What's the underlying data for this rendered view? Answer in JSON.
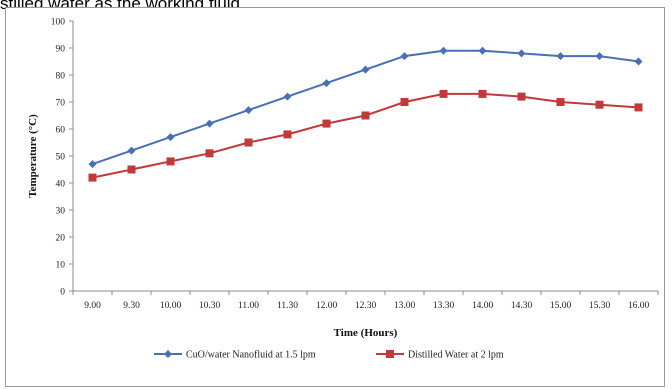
{
  "caption_fragment": "stilled water as the working fluid.",
  "chart_data": {
    "type": "line",
    "xlabel": "Time (Hours)",
    "ylabel": "Temperature (°C)",
    "categories": [
      "9.00",
      "9.30",
      "10.00",
      "10.30",
      "11.00",
      "11.30",
      "12.00",
      "12.30",
      "13.00",
      "13.30",
      "14.00",
      "14.30",
      "15.00",
      "15.30",
      "16.00"
    ],
    "ylim": [
      0,
      100
    ],
    "yticks": [
      0,
      10,
      20,
      30,
      40,
      50,
      60,
      70,
      80,
      90,
      100
    ],
    "grid": false,
    "legend_position": "bottom",
    "series": [
      {
        "name": "CuO/water Nanofluid at 1.5 lpm",
        "color": "#4a6fb5",
        "marker": "diamond",
        "values": [
          47,
          52,
          57,
          62,
          67,
          72,
          77,
          82,
          87,
          89,
          89,
          88,
          87,
          87,
          85
        ]
      },
      {
        "name": "Distilled Water at 2 lpm",
        "color": "#c0393b",
        "marker": "square",
        "values": [
          42,
          45,
          48,
          51,
          55,
          58,
          62,
          65,
          70,
          73,
          73,
          72,
          70,
          69,
          68
        ]
      }
    ]
  }
}
